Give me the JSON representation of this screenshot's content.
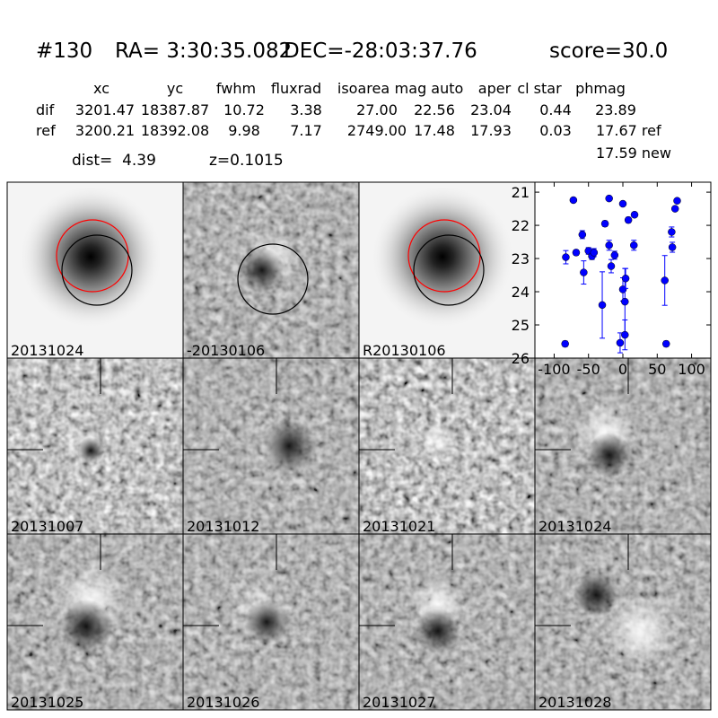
{
  "header": {
    "id": "#130",
    "ra": "RA= 3:30:35.082",
    "dec": "DEC=-28:03:37.76",
    "score": "score=30.0"
  },
  "table": {
    "columns": [
      "xc",
      "yc",
      "fwhm",
      "fluxrad",
      "isoarea",
      "mag auto",
      "aper",
      "cl star",
      "phmag"
    ],
    "rows": [
      [
        "dif",
        "3201.47",
        "18387.87",
        "10.72",
        "3.38",
        "27.00",
        "22.56",
        "23.04",
        "0.44",
        "23.89"
      ],
      [
        "ref",
        "3200.21",
        "18392.08",
        "9.98",
        "7.17",
        "2749.00",
        "17.48",
        "17.93",
        "0.03",
        "17.67 ref"
      ]
    ],
    "extra": "17.59 new",
    "dist": "dist=  4.39",
    "z": "z=0.1015"
  },
  "panels": [
    {
      "label": "20131024"
    },
    {
      "label": "-20130106"
    },
    {
      "label": "R20130106"
    },
    {
      "label": "20131007"
    },
    {
      "label": "20131012"
    },
    {
      "label": "20131021"
    },
    {
      "label": "20131024",
      "label_color": "#ff0000"
    },
    {
      "label": "20131025"
    },
    {
      "label": "20131026"
    },
    {
      "label": "20131027"
    },
    {
      "label": "20131028"
    }
  ],
  "chart_data": {
    "type": "scatter",
    "x": [
      -84,
      -83,
      -72,
      -68,
      -59,
      -57,
      -50,
      -45,
      -42,
      -26,
      -30,
      -20,
      -20,
      -17,
      -12,
      -4,
      0,
      0,
      3,
      3,
      4,
      8,
      16,
      17,
      61,
      63,
      71,
      72,
      76,
      79
    ],
    "series": [
      {
        "color": "#0000ff",
        "values": [
          25.57,
          22.96,
          21.24,
          22.82,
          22.28,
          23.42,
          22.77,
          22.93,
          22.82,
          21.95,
          24.4,
          21.19,
          22.6,
          23.23,
          22.9,
          25.54,
          21.35,
          23.93,
          24.3,
          25.3,
          23.6,
          21.84,
          22.6,
          21.68,
          23.66,
          25.57,
          22.2,
          22.66,
          21.5,
          21.26
        ],
        "errors": [
          0.08,
          0.2,
          0.05,
          0.08,
          0.12,
          0.35,
          0.1,
          0.1,
          0.12,
          0.08,
          1.0,
          0.05,
          0.15,
          0.2,
          0.12,
          0.3,
          0.06,
          0.35,
          1.0,
          0.45,
          0.3,
          0.08,
          0.15,
          0.06,
          0.75,
          0.08,
          0.15,
          0.15,
          0.06,
          0.05
        ]
      }
    ],
    "xlim": [
      -128,
      128
    ],
    "ylim": [
      20.7,
      26
    ],
    "y_inverted": true,
    "xticks": [
      -100,
      -50,
      0,
      50,
      100
    ],
    "yticks": [
      21,
      22,
      23,
      24,
      25,
      26
    ]
  }
}
